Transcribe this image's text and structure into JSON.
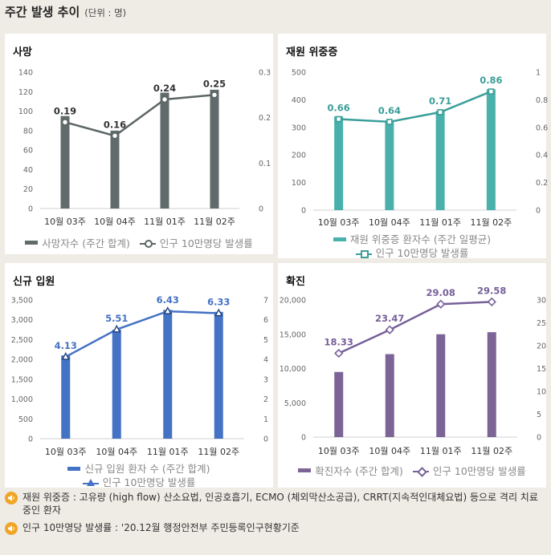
{
  "page": {
    "title": "주간 발생 추이",
    "unit": "(단위 : 명)"
  },
  "chart_data": [
    {
      "id": "deaths",
      "type": "bar",
      "title": "사망",
      "categories": [
        "10월 03주",
        "10월 04주",
        "11월 01주",
        "11월 02주"
      ],
      "bar_series": {
        "name": "사망자수 (주간 합계)",
        "values": [
          95,
          80,
          119,
          122
        ],
        "color": "#616b6b"
      },
      "line_series": {
        "name": "인구 10만명당 발생률",
        "values": [
          0.19,
          0.16,
          0.24,
          0.25
        ],
        "labels": [
          "0.19",
          "0.16",
          "0.24",
          "0.25"
        ],
        "color": "#5c6565",
        "marker": "circle"
      },
      "ylim": [
        0,
        140
      ],
      "y_ticks": [
        0,
        20,
        40,
        60,
        80,
        100,
        120,
        140
      ],
      "y_tick_labels": [
        "0",
        "20",
        "40",
        "60",
        "80",
        "100",
        "120",
        "140"
      ],
      "y2lim": [
        0,
        0.3
      ],
      "y2_ticks": [
        0,
        0.1,
        0.2,
        0.3
      ],
      "y2_tick_labels": [
        "0",
        "0.1",
        "0.2",
        "0.3"
      ],
      "legend_position": "bottom"
    },
    {
      "id": "severe",
      "type": "bar",
      "title": "재원 위중증",
      "categories": [
        "10월 03주",
        "10월 04주",
        "11월 01주",
        "11월 02주"
      ],
      "bar_series": {
        "name": "재원 위중증 환자수 (주간 일평균)",
        "values": [
          340,
          325,
          360,
          438
        ],
        "color": "#4ab0ab"
      },
      "line_series": {
        "name": "인구 10만명당 발생률",
        "values": [
          0.66,
          0.64,
          0.71,
          0.86
        ],
        "labels": [
          "0.66",
          "0.64",
          "0.71",
          "0.86"
        ],
        "color": "#3a9e99",
        "marker": "square"
      },
      "ylim": [
        0,
        500
      ],
      "y_ticks": [
        0,
        100,
        200,
        300,
        400,
        500
      ],
      "y_tick_labels": [
        "0",
        "100",
        "200",
        "300",
        "400",
        "500"
      ],
      "y2lim": [
        0,
        1
      ],
      "y2_ticks": [
        0,
        0.2,
        0.4,
        0.6,
        0.8,
        1
      ],
      "y2_tick_labels": [
        "0",
        "0.2",
        "0.4",
        "0.6",
        "0.8",
        "1"
      ],
      "legend_position": "bottom"
    },
    {
      "id": "admissions",
      "type": "bar",
      "title": "신규 입원",
      "categories": [
        "10월 03주",
        "10월 04주",
        "11월 01주",
        "11월 02주"
      ],
      "bar_series": {
        "name": "신규 입원 환자 수 (주간 합계)",
        "values": [
          2100,
          2750,
          3250,
          3200
        ],
        "color": "#4472c4"
      },
      "line_series": {
        "name": "인구 10만명당 발생률",
        "values": [
          4.13,
          5.51,
          6.43,
          6.33
        ],
        "labels": [
          "4.13",
          "5.51",
          "6.43",
          "6.33"
        ],
        "color": "#4472c4",
        "marker": "triangle"
      },
      "ylim": [
        0,
        3500
      ],
      "y_ticks": [
        0,
        500,
        1000,
        1500,
        2000,
        2500,
        3000,
        3500
      ],
      "y_tick_labels": [
        "0",
        "500",
        "1,000",
        "1,500",
        "2,000",
        "2,500",
        "3,000",
        "3,500"
      ],
      "y2lim": [
        0,
        7
      ],
      "y2_ticks": [
        0,
        1,
        2,
        3,
        4,
        5,
        6,
        7
      ],
      "y2_tick_labels": [
        "0",
        "1",
        "2",
        "3",
        "4",
        "5",
        "6",
        "7"
      ],
      "legend_position": "bottom"
    },
    {
      "id": "confirmed",
      "type": "bar",
      "title": "확진",
      "categories": [
        "10월 03주",
        "10월 04주",
        "11월 01주",
        "11월 02주"
      ],
      "bar_series": {
        "name": "확진자수 (주간 합계)",
        "values": [
          9500,
          12100,
          15000,
          15300
        ],
        "color": "#7d6496"
      },
      "line_series": {
        "name": "인구 10만명당 발생률",
        "values": [
          18.33,
          23.47,
          29.08,
          29.58
        ],
        "labels": [
          "18.33",
          "23.47",
          "29.08",
          "29.58"
        ],
        "color": "#76609a",
        "marker": "diamond"
      },
      "ylim": [
        0,
        20000
      ],
      "y_ticks": [
        0,
        5000,
        10000,
        15000,
        20000
      ],
      "y_tick_labels": [
        "0",
        "5,000",
        "10,000",
        "15,000",
        "20,000"
      ],
      "y2lim": [
        0,
        30
      ],
      "y2_ticks": [
        0,
        5,
        10,
        15,
        20,
        25,
        30
      ],
      "y2_tick_labels": [
        "0",
        "5",
        "10",
        "15",
        "20",
        "25",
        "30"
      ],
      "legend_position": "bottom"
    }
  ],
  "notes": [
    "재원 위중증 : 고유량 (high flow) 산소요법, 인공호흡기, ECMO (체외막산소공급), CRRT(지속적인대체요법) 등으로 격리 치료 중인 환자",
    "인구 10만명당 발생률 : '20.12월 행정안전부 주민등록인구현황기준"
  ],
  "colors": {
    "note_icon": "#f0a526",
    "axis": "#d0d0d0",
    "tick_text": "#666666"
  }
}
